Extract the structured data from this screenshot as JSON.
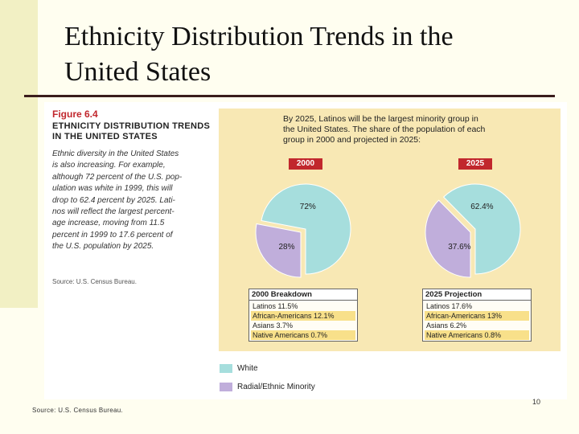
{
  "slide": {
    "title_line1": "Ethnicity Distribution Trends in the",
    "title_line2": "United States",
    "source": "Source: U.S. Census Bureau.",
    "page_number": "10"
  },
  "figure": {
    "label": "Figure 6.4",
    "heading_line1": "ETHNICITY DISTRIBUTION TRENDS",
    "heading_line2": "IN THE UNITED STATES",
    "caption_lines": [
      "Ethnic diversity in the United States",
      "is also increasing. For example,",
      "although 72 percent of the U.S. pop-",
      "ulation was white in 1999, this will",
      "drop to 62.4 percent by 2025. Lati-",
      "nos will reflect the largest percent-",
      "age increase, moving from 11.5",
      "percent in 1999 to 17.6 percent of",
      "the U.S. population by 2025."
    ],
    "source": "Source: U.S. Census Bureau.",
    "panel_text_lines": [
      "By 2025, Latinos will be the largest minority group in",
      "the United States. The share of the population of each",
      "group in 2000 and projected in 2025:"
    ]
  },
  "colors": {
    "white_group": "#a6dedd",
    "minority_group": "#c0aedb",
    "badge": "#c1272d",
    "panel": "#f8e8b4"
  },
  "chart_data": [
    {
      "type": "pie",
      "badge": "2000",
      "slices": [
        {
          "name": "White",
          "value": 72,
          "label": "72%"
        },
        {
          "name": "Radial/Ethnic Minority",
          "value": 28,
          "label": "28%"
        }
      ],
      "breakdown_title": "2000 Breakdown",
      "breakdown": [
        "Latinos 11.5%",
        "African-Americans 12.1%",
        "Asians 3.7%",
        "Native Americans 0.7%"
      ]
    },
    {
      "type": "pie",
      "badge": "2025",
      "slices": [
        {
          "name": "White",
          "value": 62.4,
          "label": "62.4%"
        },
        {
          "name": "Radial/Ethnic Minority",
          "value": 37.6,
          "label": "37.6%"
        }
      ],
      "breakdown_title": "2025 Projection",
      "breakdown": [
        "Latinos 17.6%",
        "African-Americans  13%",
        "Asians 6.2%",
        "Native Americans 0.8%"
      ]
    }
  ],
  "legend": [
    {
      "label": "White",
      "color": "#a6dedd"
    },
    {
      "label": "Radial/Ethnic Minority",
      "color": "#c0aedb"
    }
  ]
}
